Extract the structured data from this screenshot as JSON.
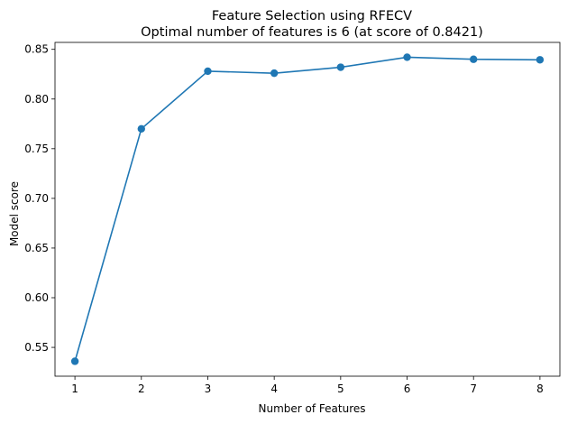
{
  "chart_data": {
    "type": "line",
    "title": "Feature Selection using RFECV",
    "subtitle": "Optimal number of features is 6 (at score of 0.8421)",
    "xlabel": "Number of Features",
    "ylabel": "Model score",
    "x": [
      1,
      2,
      3,
      4,
      5,
      6,
      7,
      8
    ],
    "series": [
      {
        "values": [
          0.536,
          0.77,
          0.828,
          0.826,
          0.832,
          0.8421,
          0.84,
          0.8395
        ]
      }
    ],
    "xlim": [
      0.7,
      8.3
    ],
    "ylim": [
      0.521,
      0.857
    ],
    "xticks": [
      1,
      2,
      3,
      4,
      5,
      6,
      7,
      8
    ],
    "yticks": [
      0.55,
      0.6,
      0.65,
      0.7,
      0.75,
      0.8,
      0.85
    ],
    "ytick_labels": [
      "0.55",
      "0.60",
      "0.65",
      "0.70",
      "0.75",
      "0.80",
      "0.85"
    ],
    "grid": false,
    "legend": "none",
    "line_color": "#1f77b4",
    "marker": "circle"
  }
}
